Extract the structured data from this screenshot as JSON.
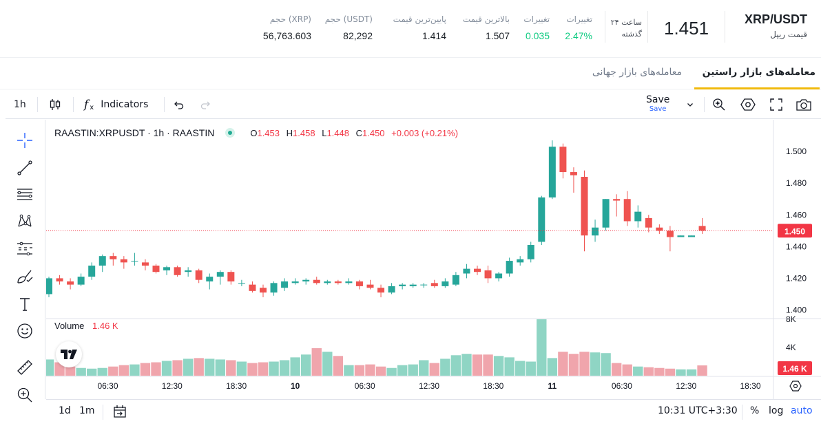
{
  "header": {
    "pair": "XRP/USDT",
    "subtitle": "قیمت ریپل",
    "price": "1.451",
    "period_top": "۲۴ ساعت",
    "period_bottom": "گذشته",
    "stats": [
      {
        "label": "تغییرات",
        "value": "2.47%",
        "color": "#0ecb81"
      },
      {
        "label": "تغییرات",
        "value": "0.035",
        "color": "#0ecb81"
      },
      {
        "label": "بالاترین قیمت",
        "value": "1.507"
      },
      {
        "label": "پایین‌ترین قیمت",
        "value": "1.414"
      },
      {
        "label": "حجم (USDT)",
        "value": "82,292"
      },
      {
        "label": "حجم (XRP)",
        "value": "56,763.603"
      }
    ]
  },
  "tabs": {
    "raastin": "معامله‌های بازار راستین",
    "global": "معامله‌های بازار جهانی"
  },
  "toolbar": {
    "interval": "1h",
    "indicators": "Indicators",
    "save": "Save",
    "save_sub": "Save"
  },
  "legend": {
    "symbol": "RAASTIN:XRPUSDT · 1h · RAASTIN",
    "o_label": "O",
    "o": "1.453",
    "h_label": "H",
    "h": "1.458",
    "l_label": "L",
    "l": "1.448",
    "c_label": "C",
    "c": "1.450",
    "change": "+0.003 (+0.21%)",
    "volume_label": "Volume",
    "volume_value": "1.46 K"
  },
  "bottom": {
    "range_1d": "1d",
    "range_1m": "1m",
    "time": "10:31 UTC+3:30",
    "percent": "%",
    "log": "log",
    "auto": "auto"
  },
  "colors": {
    "up": "#26a69a",
    "down": "#ef5350",
    "accent": "#f0b90b",
    "blue": "#2962ff"
  },
  "chart_data": {
    "type": "candlestick",
    "ylim": [
      1.395,
      1.507
    ],
    "yticks": [
      "1.400",
      "1.420",
      "1.440",
      "1.460",
      "1.480",
      "1.500"
    ],
    "last_price_label": "1.450",
    "last_price": 1.45,
    "xticks": [
      "06:30",
      "12:30",
      "18:30",
      "10",
      "06:30",
      "12:30",
      "18:30",
      "11",
      "06:30",
      "12:30",
      "18:30"
    ],
    "xtick_positions": [
      5.5,
      11.5,
      17.5,
      23,
      29.5,
      35.5,
      41.5,
      47,
      53.5,
      59.5,
      65.5
    ],
    "volume_ticks": [
      "8K",
      "4K"
    ],
    "volume_label": "1.46 K",
    "volume_ylim": [
      0,
      8000
    ],
    "candles": [
      {
        "o": 1.41,
        "h": 1.421,
        "l": 1.408,
        "c": 1.42,
        "v": 2300
      },
      {
        "o": 1.42,
        "h": 1.422,
        "l": 1.416,
        "c": 1.418,
        "v": 1900
      },
      {
        "o": 1.418,
        "h": 1.42,
        "l": 1.413,
        "c": 1.416,
        "v": 1300
      },
      {
        "o": 1.416,
        "h": 1.423,
        "l": 1.415,
        "c": 1.421,
        "v": 1100
      },
      {
        "o": 1.421,
        "h": 1.43,
        "l": 1.419,
        "c": 1.428,
        "v": 1000
      },
      {
        "o": 1.428,
        "h": 1.435,
        "l": 1.424,
        "c": 1.434,
        "v": 1100
      },
      {
        "o": 1.434,
        "h": 1.436,
        "l": 1.428,
        "c": 1.432,
        "v": 1300
      },
      {
        "o": 1.432,
        "h": 1.434,
        "l": 1.426,
        "c": 1.43,
        "v": 1500
      },
      {
        "o": 1.431,
        "h": 1.436,
        "l": 1.428,
        "c": 1.431,
        "v": 1600
      },
      {
        "o": 1.43,
        "h": 1.432,
        "l": 1.425,
        "c": 1.428,
        "v": 1800
      },
      {
        "o": 1.428,
        "h": 1.429,
        "l": 1.423,
        "c": 1.424,
        "v": 1900
      },
      {
        "o": 1.425,
        "h": 1.428,
        "l": 1.422,
        "c": 1.427,
        "v": 2100
      },
      {
        "o": 1.427,
        "h": 1.428,
        "l": 1.421,
        "c": 1.422,
        "v": 2200
      },
      {
        "o": 1.424,
        "h": 1.427,
        "l": 1.421,
        "c": 1.425,
        "v": 2400
      },
      {
        "o": 1.425,
        "h": 1.426,
        "l": 1.417,
        "c": 1.419,
        "v": 2500
      },
      {
        "o": 1.418,
        "h": 1.423,
        "l": 1.413,
        "c": 1.421,
        "v": 2400
      },
      {
        "o": 1.421,
        "h": 1.425,
        "l": 1.416,
        "c": 1.424,
        "v": 2300
      },
      {
        "o": 1.424,
        "h": 1.425,
        "l": 1.416,
        "c": 1.418,
        "v": 2200
      },
      {
        "o": 1.417,
        "h": 1.419,
        "l": 1.415,
        "c": 1.417,
        "v": 2000
      },
      {
        "o": 1.416,
        "h": 1.418,
        "l": 1.411,
        "c": 1.412,
        "v": 1800
      },
      {
        "o": 1.414,
        "h": 1.416,
        "l": 1.408,
        "c": 1.411,
        "v": 1900
      },
      {
        "o": 1.411,
        "h": 1.418,
        "l": 1.409,
        "c": 1.417,
        "v": 2000
      },
      {
        "o": 1.414,
        "h": 1.42,
        "l": 1.412,
        "c": 1.418,
        "v": 2200
      },
      {
        "o": 1.417,
        "h": 1.42,
        "l": 1.416,
        "c": 1.418,
        "v": 2600
      },
      {
        "o": 1.418,
        "h": 1.42,
        "l": 1.416,
        "c": 1.419,
        "v": 3000
      },
      {
        "o": 1.419,
        "h": 1.421,
        "l": 1.416,
        "c": 1.417,
        "v": 3900
      },
      {
        "o": 1.417,
        "h": 1.419,
        "l": 1.416,
        "c": 1.418,
        "v": 3400
      },
      {
        "o": 1.418,
        "h": 1.419,
        "l": 1.416,
        "c": 1.417,
        "v": 2800
      },
      {
        "o": 1.417,
        "h": 1.42,
        "l": 1.416,
        "c": 1.418,
        "v": 1500
      },
      {
        "o": 1.418,
        "h": 1.419,
        "l": 1.413,
        "c": 1.415,
        "v": 1500
      },
      {
        "o": 1.416,
        "h": 1.419,
        "l": 1.413,
        "c": 1.414,
        "v": 1600
      },
      {
        "o": 1.414,
        "h": 1.416,
        "l": 1.408,
        "c": 1.411,
        "v": 1300
      },
      {
        "o": 1.411,
        "h": 1.417,
        "l": 1.41,
        "c": 1.415,
        "v": 1100
      },
      {
        "o": 1.415,
        "h": 1.417,
        "l": 1.413,
        "c": 1.416,
        "v": 1500
      },
      {
        "o": 1.415,
        "h": 1.417,
        "l": 1.414,
        "c": 1.416,
        "v": 1600
      },
      {
        "o": 1.416,
        "h": 1.417,
        "l": 1.414,
        "c": 1.416,
        "v": 2200
      },
      {
        "o": 1.417,
        "h": 1.419,
        "l": 1.414,
        "c": 1.415,
        "v": 1800
      },
      {
        "o": 1.415,
        "h": 1.42,
        "l": 1.414,
        "c": 1.418,
        "v": 2400
      },
      {
        "o": 1.416,
        "h": 1.424,
        "l": 1.415,
        "c": 1.422,
        "v": 2900
      },
      {
        "o": 1.423,
        "h": 1.429,
        "l": 1.42,
        "c": 1.426,
        "v": 3100
      },
      {
        "o": 1.426,
        "h": 1.428,
        "l": 1.422,
        "c": 1.424,
        "v": 3000
      },
      {
        "o": 1.425,
        "h": 1.428,
        "l": 1.417,
        "c": 1.42,
        "v": 3000
      },
      {
        "o": 1.42,
        "h": 1.424,
        "l": 1.418,
        "c": 1.423,
        "v": 2800
      },
      {
        "o": 1.423,
        "h": 1.433,
        "l": 1.421,
        "c": 1.431,
        "v": 2600
      },
      {
        "o": 1.43,
        "h": 1.434,
        "l": 1.428,
        "c": 1.432,
        "v": 2100
      },
      {
        "o": 1.432,
        "h": 1.443,
        "l": 1.43,
        "c": 1.441,
        "v": 2000
      },
      {
        "o": 1.443,
        "h": 1.472,
        "l": 1.441,
        "c": 1.471,
        "v": 8000
      },
      {
        "o": 1.471,
        "h": 1.507,
        "l": 1.47,
        "c": 1.503,
        "v": 2500
      },
      {
        "o": 1.503,
        "h": 1.505,
        "l": 1.483,
        "c": 1.487,
        "v": 3400
      },
      {
        "o": 1.487,
        "h": 1.49,
        "l": 1.474,
        "c": 1.485,
        "v": 3100
      },
      {
        "o": 1.484,
        "h": 1.488,
        "l": 1.437,
        "c": 1.447,
        "v": 3400
      },
      {
        "o": 1.447,
        "h": 1.457,
        "l": 1.443,
        "c": 1.452,
        "v": 3300
      },
      {
        "o": 1.452,
        "h": 1.47,
        "l": 1.45,
        "c": 1.47,
        "v": 3200
      },
      {
        "o": 1.47,
        "h": 1.473,
        "l": 1.459,
        "c": 1.469,
        "v": 1800
      },
      {
        "o": 1.47,
        "h": 1.475,
        "l": 1.453,
        "c": 1.456,
        "v": 1600
      },
      {
        "o": 1.456,
        "h": 1.466,
        "l": 1.452,
        "c": 1.462,
        "v": 1300
      },
      {
        "o": 1.458,
        "h": 1.46,
        "l": 1.449,
        "c": 1.452,
        "v": 1200
      },
      {
        "o": 1.452,
        "h": 1.454,
        "l": 1.448,
        "c": 1.45,
        "v": 1100
      },
      {
        "o": 1.45,
        "h": 1.453,
        "l": 1.437,
        "c": 1.446,
        "v": 1000
      },
      {
        "o": 1.446,
        "h": 1.447,
        "l": 1.446,
        "c": 1.447,
        "v": 900
      },
      {
        "o": 1.446,
        "h": 1.447,
        "l": 1.446,
        "c": 1.447,
        "v": 900
      },
      {
        "o": 1.453,
        "h": 1.458,
        "l": 1.448,
        "c": 1.45,
        "v": 1460
      }
    ]
  }
}
